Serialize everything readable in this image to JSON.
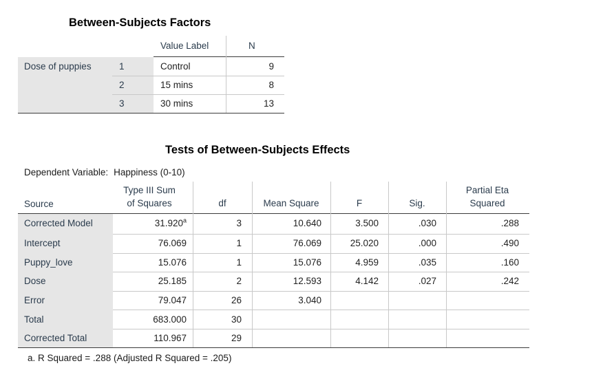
{
  "factors": {
    "title": "Between-Subjects Factors",
    "headers": {
      "value_label": "Value Label",
      "n": "N"
    },
    "factor_name": "Dose of puppies",
    "rows": [
      {
        "level": "1",
        "value_label": "Control",
        "n": "9"
      },
      {
        "level": "2",
        "value_label": "15 mins",
        "n": "8"
      },
      {
        "level": "3",
        "value_label": "30 mins",
        "n": "13"
      }
    ]
  },
  "effects": {
    "title": "Tests of Between-Subjects Effects",
    "dependent_variable_label": "Dependent Variable:",
    "dependent_variable": "Happiness (0-10)",
    "headers": {
      "source": "Source",
      "ss_line1": "Type III Sum",
      "ss_line2": "of Squares",
      "df": "df",
      "ms": "Mean Square",
      "f": "F",
      "sig": "Sig.",
      "eta_line1": "Partial Eta",
      "eta_line2": "Squared"
    },
    "rows": [
      {
        "source": "Corrected Model",
        "ss": "31.920",
        "ss_note": "a",
        "df": "3",
        "ms": "10.640",
        "f": "3.500",
        "sig": ".030",
        "eta": ".288"
      },
      {
        "source": "Intercept",
        "ss": "76.069",
        "ss_note": "",
        "df": "1",
        "ms": "76.069",
        "f": "25.020",
        "sig": ".000",
        "eta": ".490"
      },
      {
        "source": "Puppy_love",
        "ss": "15.076",
        "ss_note": "",
        "df": "1",
        "ms": "15.076",
        "f": "4.959",
        "sig": ".035",
        "eta": ".160"
      },
      {
        "source": "Dose",
        "ss": "25.185",
        "ss_note": "",
        "df": "2",
        "ms": "12.593",
        "f": "4.142",
        "sig": ".027",
        "eta": ".242"
      },
      {
        "source": "Error",
        "ss": "79.047",
        "ss_note": "",
        "df": "26",
        "ms": "3.040",
        "f": "",
        "sig": "",
        "eta": ""
      },
      {
        "source": "Total",
        "ss": "683.000",
        "ss_note": "",
        "df": "30",
        "ms": "",
        "f": "",
        "sig": "",
        "eta": ""
      },
      {
        "source": "Corrected Total",
        "ss": "110.967",
        "ss_note": "",
        "df": "29",
        "ms": "",
        "f": "",
        "sig": "",
        "eta": ""
      }
    ],
    "footnote": "a. R Squared = .288 (Adjusted R Squared = .205)"
  }
}
